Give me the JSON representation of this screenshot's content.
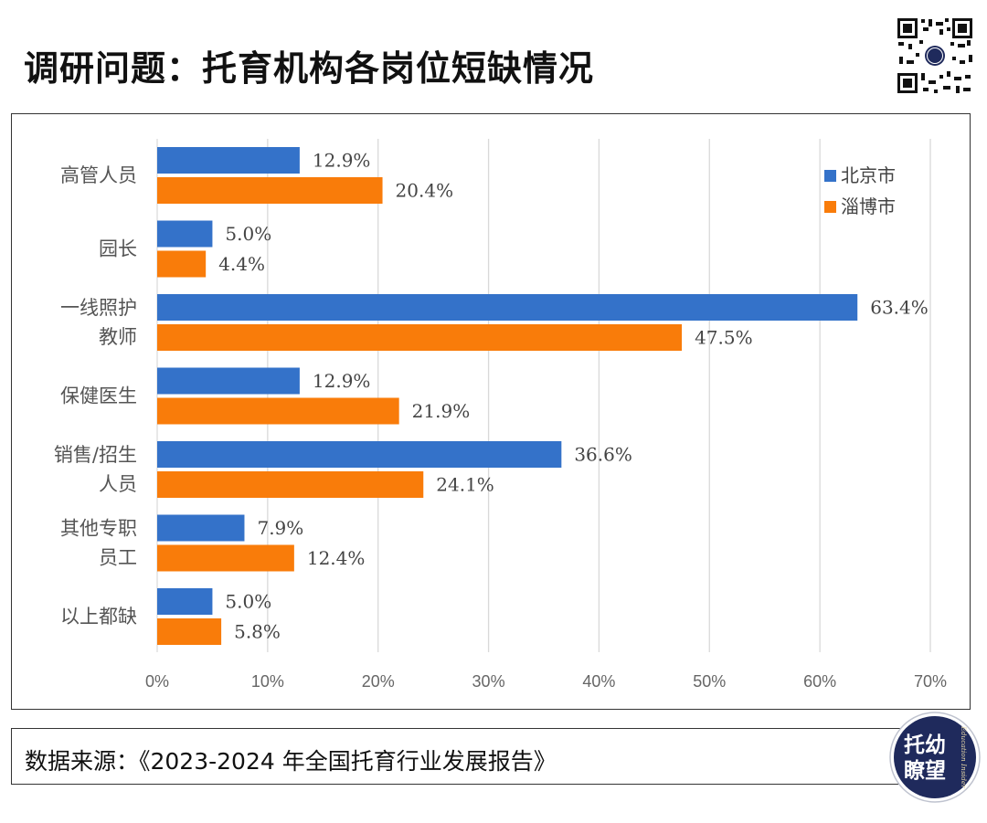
{
  "title": "调研问题：托育机构各岗位短缺情况",
  "footer": {
    "source": "数据来源：《2023-2024 年全国托育行业发展报告》"
  },
  "seal": {
    "line1": "托幼",
    "line2": "瞭望",
    "side_text": "Education Insider",
    "color": "#1f2a5c"
  },
  "colors": {
    "beijing": "#3472c9",
    "zibo": "#f97c0a",
    "grid": "#d9d9d9"
  },
  "chart_data": {
    "type": "bar",
    "orientation": "horizontal",
    "title": "",
    "categories": [
      [
        "高管人员"
      ],
      [
        "园长"
      ],
      [
        "一线照护",
        "教师"
      ],
      [
        "保健医生"
      ],
      [
        "销售/招生",
        "人员"
      ],
      [
        "其他专职",
        "员工"
      ],
      [
        "以上都缺"
      ]
    ],
    "series": [
      {
        "name": "北京市",
        "values": [
          12.9,
          5.0,
          63.4,
          12.9,
          36.6,
          7.9,
          5.0
        ],
        "labels": [
          "12.9%",
          "5.0%",
          "63.4%",
          "12.9%",
          "36.6%",
          "7.9%",
          "5.0%"
        ]
      },
      {
        "name": "淄博市",
        "values": [
          20.4,
          4.4,
          47.5,
          21.9,
          24.1,
          12.4,
          5.8
        ],
        "labels": [
          "20.4%",
          "4.4%",
          "47.5%",
          "21.9%",
          "24.1%",
          "12.4%",
          "5.8%"
        ]
      }
    ],
    "xlim": [
      0,
      70
    ],
    "xticks": [
      0,
      10,
      20,
      30,
      40,
      50,
      60,
      70
    ],
    "xtick_labels": [
      "0%",
      "10%",
      "20%",
      "30%",
      "40%",
      "50%",
      "60%",
      "70%"
    ],
    "grid": true,
    "legend_position": "top-right"
  }
}
